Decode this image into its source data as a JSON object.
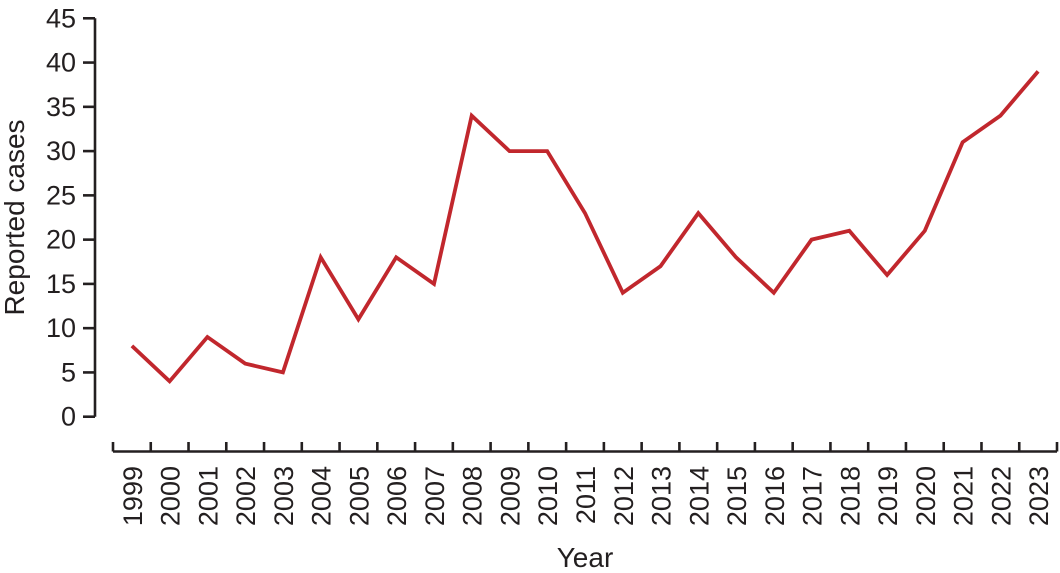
{
  "chart_data": {
    "type": "line",
    "title": "",
    "xlabel": "Year",
    "ylabel": "Reported cases",
    "x": [
      "1999",
      "2000",
      "2001",
      "2002",
      "2003",
      "2004",
      "2005",
      "2006",
      "2007",
      "2008",
      "2009",
      "2010",
      "2011",
      "2012",
      "2013",
      "2014",
      "2015",
      "2016",
      "2017",
      "2018",
      "2019",
      "2020",
      "2021",
      "2022",
      "2023"
    ],
    "series": [
      {
        "name": "Reported cases",
        "values": [
          8,
          4,
          9,
          6,
          5,
          18,
          11,
          18,
          15,
          34,
          30,
          30,
          23,
          14,
          17,
          23,
          18,
          14,
          20,
          21,
          16,
          21,
          31,
          34,
          39
        ]
      }
    ],
    "ylim": [
      0,
      45
    ],
    "yticks": [
      0,
      5,
      10,
      15,
      20,
      25,
      30,
      35,
      40,
      45
    ],
    "grid": false,
    "legend_position": "none",
    "line_color": "#c1272d",
    "axis_color": "#231f20"
  }
}
